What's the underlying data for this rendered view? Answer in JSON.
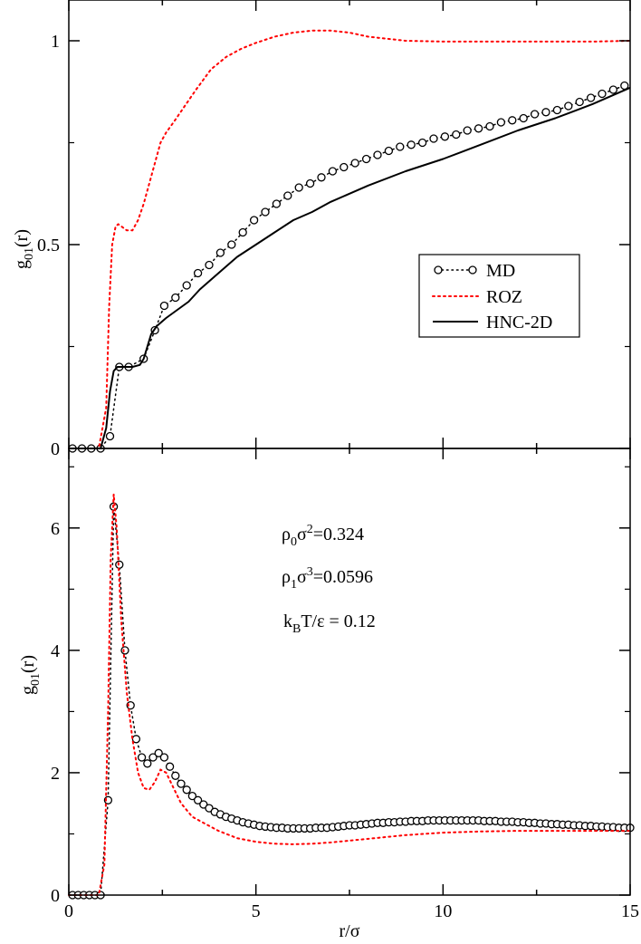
{
  "chart_data": [
    {
      "type": "line",
      "panel": "top",
      "ylabel": {
        "main": "g",
        "sub": "01",
        "tail": "(r)"
      },
      "xlim": [
        0,
        15
      ],
      "ylim": [
        0,
        1.1
      ],
      "yticks": [
        0,
        0.5,
        1
      ],
      "ytick_labels": [
        "0",
        "0.5",
        "1"
      ],
      "legend_position": "center-right",
      "series": [
        {
          "name": "MD",
          "label": "MD",
          "color": "#000000",
          "style": "circles-dotted",
          "x": [
            0.1,
            0.35,
            0.6,
            0.85,
            1.1,
            1.35,
            1.6,
            2.0,
            2.3,
            2.55,
            2.85,
            3.15,
            3.45,
            3.75,
            4.05,
            4.35,
            4.65,
            4.95,
            5.25,
            5.55,
            5.85,
            6.15,
            6.45,
            6.75,
            7.05,
            7.35,
            7.65,
            7.95,
            8.25,
            8.55,
            8.85,
            9.15,
            9.45,
            9.75,
            10.05,
            10.35,
            10.65,
            10.95,
            11.25,
            11.55,
            11.85,
            12.15,
            12.45,
            12.75,
            13.05,
            13.35,
            13.65,
            13.95,
            14.25,
            14.55,
            14.85
          ],
          "y": [
            0,
            0,
            0,
            0,
            0.03,
            0.2,
            0.2,
            0.22,
            0.29,
            0.35,
            0.37,
            0.4,
            0.43,
            0.45,
            0.48,
            0.5,
            0.53,
            0.56,
            0.58,
            0.6,
            0.62,
            0.64,
            0.65,
            0.665,
            0.68,
            0.69,
            0.7,
            0.71,
            0.72,
            0.73,
            0.74,
            0.745,
            0.75,
            0.76,
            0.765,
            0.77,
            0.78,
            0.785,
            0.79,
            0.8,
            0.805,
            0.81,
            0.82,
            0.825,
            0.83,
            0.84,
            0.85,
            0.86,
            0.87,
            0.88,
            0.89
          ]
        },
        {
          "name": "ROZ",
          "label": "ROZ",
          "color": "#ff0000",
          "style": "dotted",
          "x": [
            0,
            0.8,
            1.0,
            1.08,
            1.16,
            1.25,
            1.32,
            1.4,
            1.55,
            1.7,
            1.85,
            2.0,
            2.15,
            2.3,
            2.45,
            2.6,
            2.8,
            3.1,
            3.4,
            3.8,
            4.2,
            4.6,
            5.0,
            5.5,
            6.0,
            6.5,
            7.0,
            7.5,
            8.0,
            9.0,
            10.0,
            11.0,
            12.0,
            13.0,
            14.0,
            15.0
          ],
          "y": [
            0,
            0,
            0.1,
            0.35,
            0.5,
            0.545,
            0.55,
            0.545,
            0.535,
            0.535,
            0.56,
            0.6,
            0.65,
            0.7,
            0.75,
            0.775,
            0.8,
            0.84,
            0.88,
            0.93,
            0.96,
            0.98,
            0.995,
            1.01,
            1.02,
            1.025,
            1.025,
            1.02,
            1.01,
            1.0,
            0.998,
            0.998,
            0.998,
            0.998,
            0.998,
            1.0
          ]
        },
        {
          "name": "HNC-2D",
          "label": "HNC-2D",
          "color": "#000000",
          "style": "solid",
          "x": [
            0,
            0.85,
            1.0,
            1.1,
            1.2,
            1.3,
            1.45,
            1.7,
            1.9,
            2.0,
            2.1,
            2.2,
            2.35,
            2.6,
            2.9,
            3.2,
            3.5,
            4.0,
            4.5,
            5.0,
            5.5,
            6.0,
            6.5,
            7.0,
            7.5,
            8.0,
            9.0,
            10.0,
            11.0,
            12.0,
            13.0,
            14.0,
            15.0
          ],
          "y": [
            0,
            0,
            0.05,
            0.14,
            0.19,
            0.2,
            0.2,
            0.2,
            0.205,
            0.22,
            0.25,
            0.28,
            0.3,
            0.32,
            0.34,
            0.36,
            0.39,
            0.43,
            0.47,
            0.5,
            0.53,
            0.56,
            0.58,
            0.605,
            0.625,
            0.645,
            0.68,
            0.71,
            0.745,
            0.78,
            0.81,
            0.845,
            0.885
          ]
        }
      ]
    },
    {
      "type": "line",
      "panel": "bottom",
      "xlabel": "r/σ",
      "ylabel": {
        "main": "g",
        "sub": "01",
        "tail": "(r)"
      },
      "xlim": [
        0,
        15
      ],
      "ylim": [
        0,
        7.3
      ],
      "xticks": [
        0,
        5,
        10,
        15
      ],
      "xtick_labels": [
        "0",
        "5",
        "10",
        "15"
      ],
      "yticks": [
        0,
        2,
        4,
        6
      ],
      "ytick_labels": [
        "0",
        "2",
        "4",
        "6"
      ],
      "annotations": [
        {
          "parts": [
            "ρ",
            "0",
            "σ",
            "2",
            "=0.324"
          ],
          "text": "ρ0σ2=0.324"
        },
        {
          "parts": [
            "ρ",
            "1",
            "σ",
            "3",
            "=0.0596"
          ],
          "text": "ρ1σ3=0.0596"
        },
        {
          "parts": [
            "k",
            "B",
            "T/ε = 0.12"
          ],
          "text": "kBT/ε = 0.12"
        }
      ],
      "series": [
        {
          "name": "MD",
          "color": "#000000",
          "style": "circles-dotted",
          "x": [
            0.1,
            0.25,
            0.4,
            0.55,
            0.7,
            0.85,
            1.05,
            1.2,
            1.35,
            1.5,
            1.65,
            1.8,
            1.95,
            2.1,
            2.25,
            2.4,
            2.55,
            2.7,
            2.85,
            3.0,
            3.15,
            3.3,
            3.45,
            3.6,
            3.75,
            3.9,
            4.05,
            4.2,
            4.35,
            4.5,
            4.65,
            4.8,
            4.95,
            5.1,
            5.25,
            5.4,
            5.55,
            5.7,
            5.85,
            6.0,
            6.15,
            6.3,
            6.45,
            6.6,
            6.75,
            6.9,
            7.05,
            7.2,
            7.35,
            7.5,
            7.65,
            7.8,
            7.95,
            8.1,
            8.25,
            8.4,
            8.55,
            8.7,
            8.85,
            9.0,
            9.15,
            9.3,
            9.45,
            9.6,
            9.75,
            9.9,
            10.05,
            10.2,
            10.35,
            10.5,
            10.65,
            10.8,
            10.95,
            11.1,
            11.25,
            11.4,
            11.55,
            11.7,
            11.85,
            12.0,
            12.15,
            12.3,
            12.45,
            12.6,
            12.75,
            12.9,
            13.05,
            13.2,
            13.35,
            13.5,
            13.65,
            13.8,
            13.95,
            14.1,
            14.25,
            14.4,
            14.55,
            14.7,
            14.85,
            15.0
          ],
          "y": [
            0,
            0,
            0,
            0,
            0,
            0,
            1.55,
            6.35,
            5.4,
            4.0,
            3.1,
            2.55,
            2.25,
            2.15,
            2.25,
            2.32,
            2.25,
            2.1,
            1.95,
            1.82,
            1.72,
            1.62,
            1.55,
            1.48,
            1.42,
            1.36,
            1.32,
            1.28,
            1.25,
            1.22,
            1.19,
            1.17,
            1.15,
            1.13,
            1.12,
            1.11,
            1.1,
            1.1,
            1.09,
            1.09,
            1.09,
            1.09,
            1.09,
            1.1,
            1.1,
            1.1,
            1.11,
            1.12,
            1.13,
            1.14,
            1.14,
            1.15,
            1.16,
            1.17,
            1.18,
            1.18,
            1.19,
            1.19,
            1.2,
            1.2,
            1.21,
            1.21,
            1.21,
            1.22,
            1.22,
            1.22,
            1.22,
            1.22,
            1.22,
            1.22,
            1.22,
            1.22,
            1.22,
            1.21,
            1.21,
            1.21,
            1.2,
            1.2,
            1.2,
            1.19,
            1.19,
            1.18,
            1.18,
            1.17,
            1.17,
            1.16,
            1.16,
            1.15,
            1.15,
            1.14,
            1.14,
            1.13,
            1.13,
            1.12,
            1.12,
            1.11,
            1.11,
            1.1,
            1.1,
            1.1
          ]
        },
        {
          "name": "ROZ",
          "color": "#ff0000",
          "style": "dotted",
          "x": [
            0,
            0.8,
            0.95,
            1.05,
            1.12,
            1.2,
            1.28,
            1.4,
            1.55,
            1.7,
            1.85,
            2.0,
            2.15,
            2.3,
            2.45,
            2.6,
            2.8,
            3.0,
            3.3,
            3.6,
            4.0,
            4.5,
            5.0,
            5.5,
            6.0,
            6.5,
            7.0,
            8.0,
            9.0,
            10.0,
            11.0,
            12.0,
            13.0,
            14.0,
            15.0
          ],
          "y": [
            0,
            0,
            0.5,
            3.0,
            5.5,
            6.55,
            6.0,
            4.5,
            3.3,
            2.55,
            2.0,
            1.75,
            1.72,
            1.85,
            2.05,
            2.0,
            1.75,
            1.5,
            1.28,
            1.18,
            1.05,
            0.93,
            0.87,
            0.84,
            0.83,
            0.84,
            0.86,
            0.92,
            0.98,
            1.02,
            1.04,
            1.05,
            1.05,
            1.05,
            1.05
          ]
        }
      ]
    }
  ]
}
